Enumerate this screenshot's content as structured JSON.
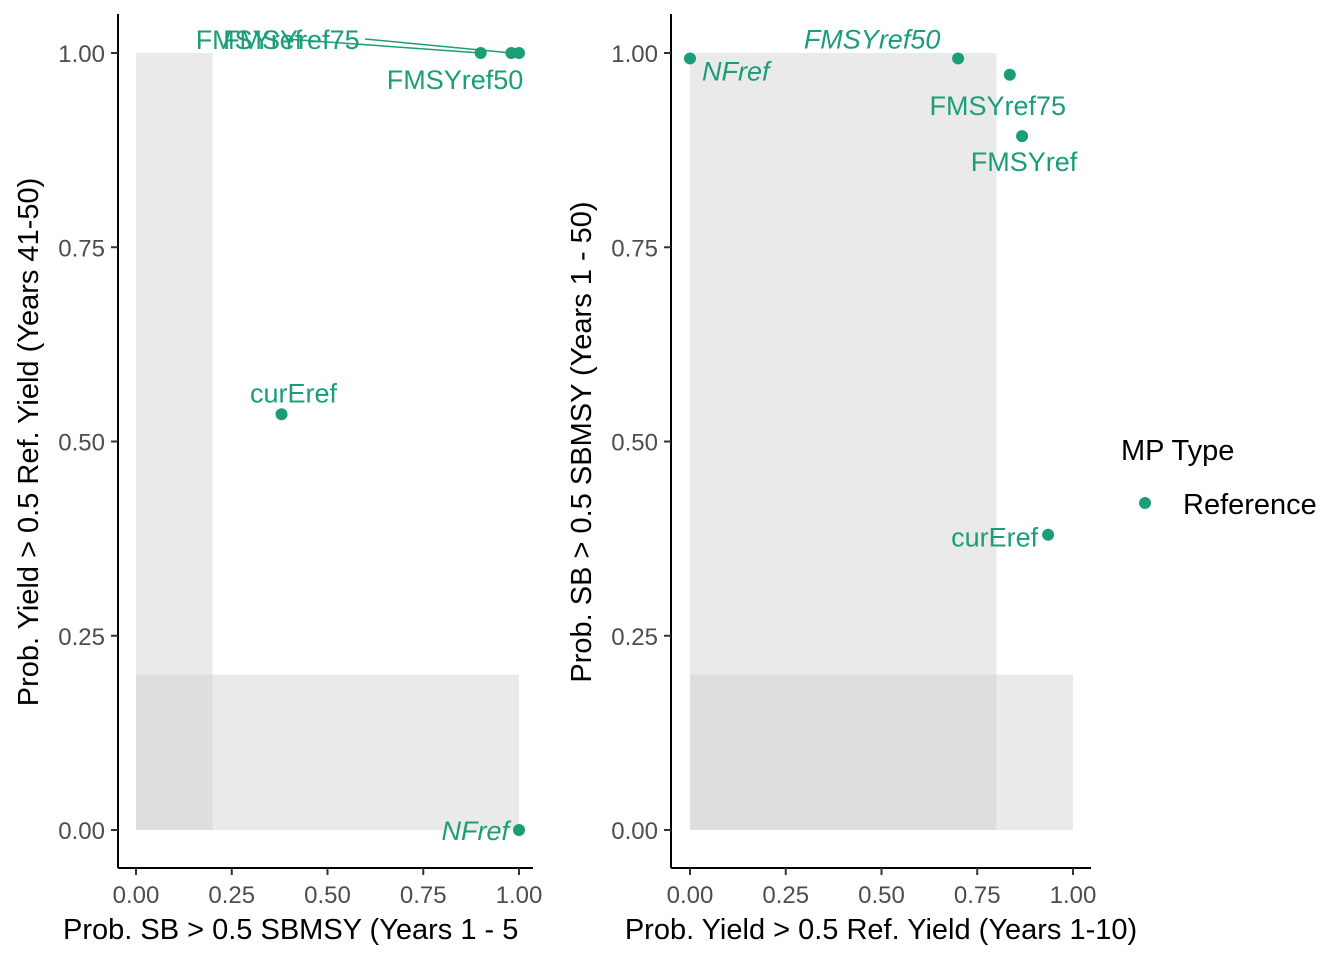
{
  "colors": {
    "reference": "#1b9e77",
    "band": "#e6e6e6",
    "axis": "#000000",
    "tick_text": "#4d4d4d"
  },
  "chart_data": [
    {
      "type": "scatter",
      "xlabel": "Prob. SB > 0.5 SBMSY (Years 1 - 5",
      "ylabel": "Prob. Yield > 0.5 Ref. Yield (Years 41-50)",
      "xlim": [
        0,
        1
      ],
      "ylim": [
        0,
        1
      ],
      "x_ticks": [
        "0.00",
        "0.25",
        "0.50",
        "0.75",
        "1.00"
      ],
      "y_ticks": [
        "0.00",
        "0.25",
        "0.50",
        "0.75",
        "1.00"
      ],
      "grid": false,
      "shaded_regions": [
        {
          "x": [
            0,
            0.2
          ],
          "y": [
            0,
            1
          ]
        },
        {
          "x": [
            0,
            1
          ],
          "y": [
            0,
            0.2
          ]
        }
      ],
      "points": [
        {
          "name": "FMSYref",
          "x": 0.9,
          "y": 1.0,
          "italic": false,
          "label_dx": 0.0,
          "label_dy": 0.0
        },
        {
          "name": "FMSYref75",
          "x": 0.98,
          "y": 1.0,
          "italic": false,
          "label_dx": 0.0,
          "label_dy": 0.0
        },
        {
          "name": "FMSYref50",
          "x": 1.0,
          "y": 1.0,
          "italic": false,
          "label_dx": 0.0,
          "label_dy": 0.0
        },
        {
          "name": "curEref",
          "x": 0.38,
          "y": 0.535,
          "italic": false,
          "label_dx": 0.0,
          "label_dy": 0.0
        },
        {
          "name": "NFref",
          "x": 1.0,
          "y": 0.0,
          "italic": true,
          "label_dx": 0.0,
          "label_dy": 0.0
        }
      ]
    },
    {
      "type": "scatter",
      "xlabel": "Prob. Yield > 0.5 Ref. Yield (Years 1-10)",
      "ylabel": "Prob. SB > 0.5 SBMSY (Years 1 - 50)",
      "xlim": [
        0,
        1
      ],
      "ylim": [
        0,
        1
      ],
      "x_ticks": [
        "0.00",
        "0.25",
        "0.50",
        "0.75",
        "1.00"
      ],
      "y_ticks": [
        "0.00",
        "0.25",
        "0.50",
        "0.75",
        "1.00"
      ],
      "grid": false,
      "shaded_regions": [
        {
          "x": [
            0,
            0.8
          ],
          "y": [
            0,
            1
          ]
        },
        {
          "x": [
            0,
            1
          ],
          "y": [
            0,
            0.2
          ]
        }
      ],
      "points": [
        {
          "name": "NFref",
          "x": 0.0,
          "y": 0.993,
          "italic": true
        },
        {
          "name": "FMSYref50",
          "x": 0.7,
          "y": 0.993,
          "italic": true
        },
        {
          "name": "FMSYref75",
          "x": 0.835,
          "y": 0.972,
          "italic": false
        },
        {
          "name": "FMSYref",
          "x": 0.867,
          "y": 0.893,
          "italic": false
        },
        {
          "name": "curEref",
          "x": 0.935,
          "y": 0.38,
          "italic": false
        }
      ]
    }
  ],
  "legend": {
    "title": "MP Type",
    "items": [
      {
        "label": "Reference"
      }
    ]
  }
}
